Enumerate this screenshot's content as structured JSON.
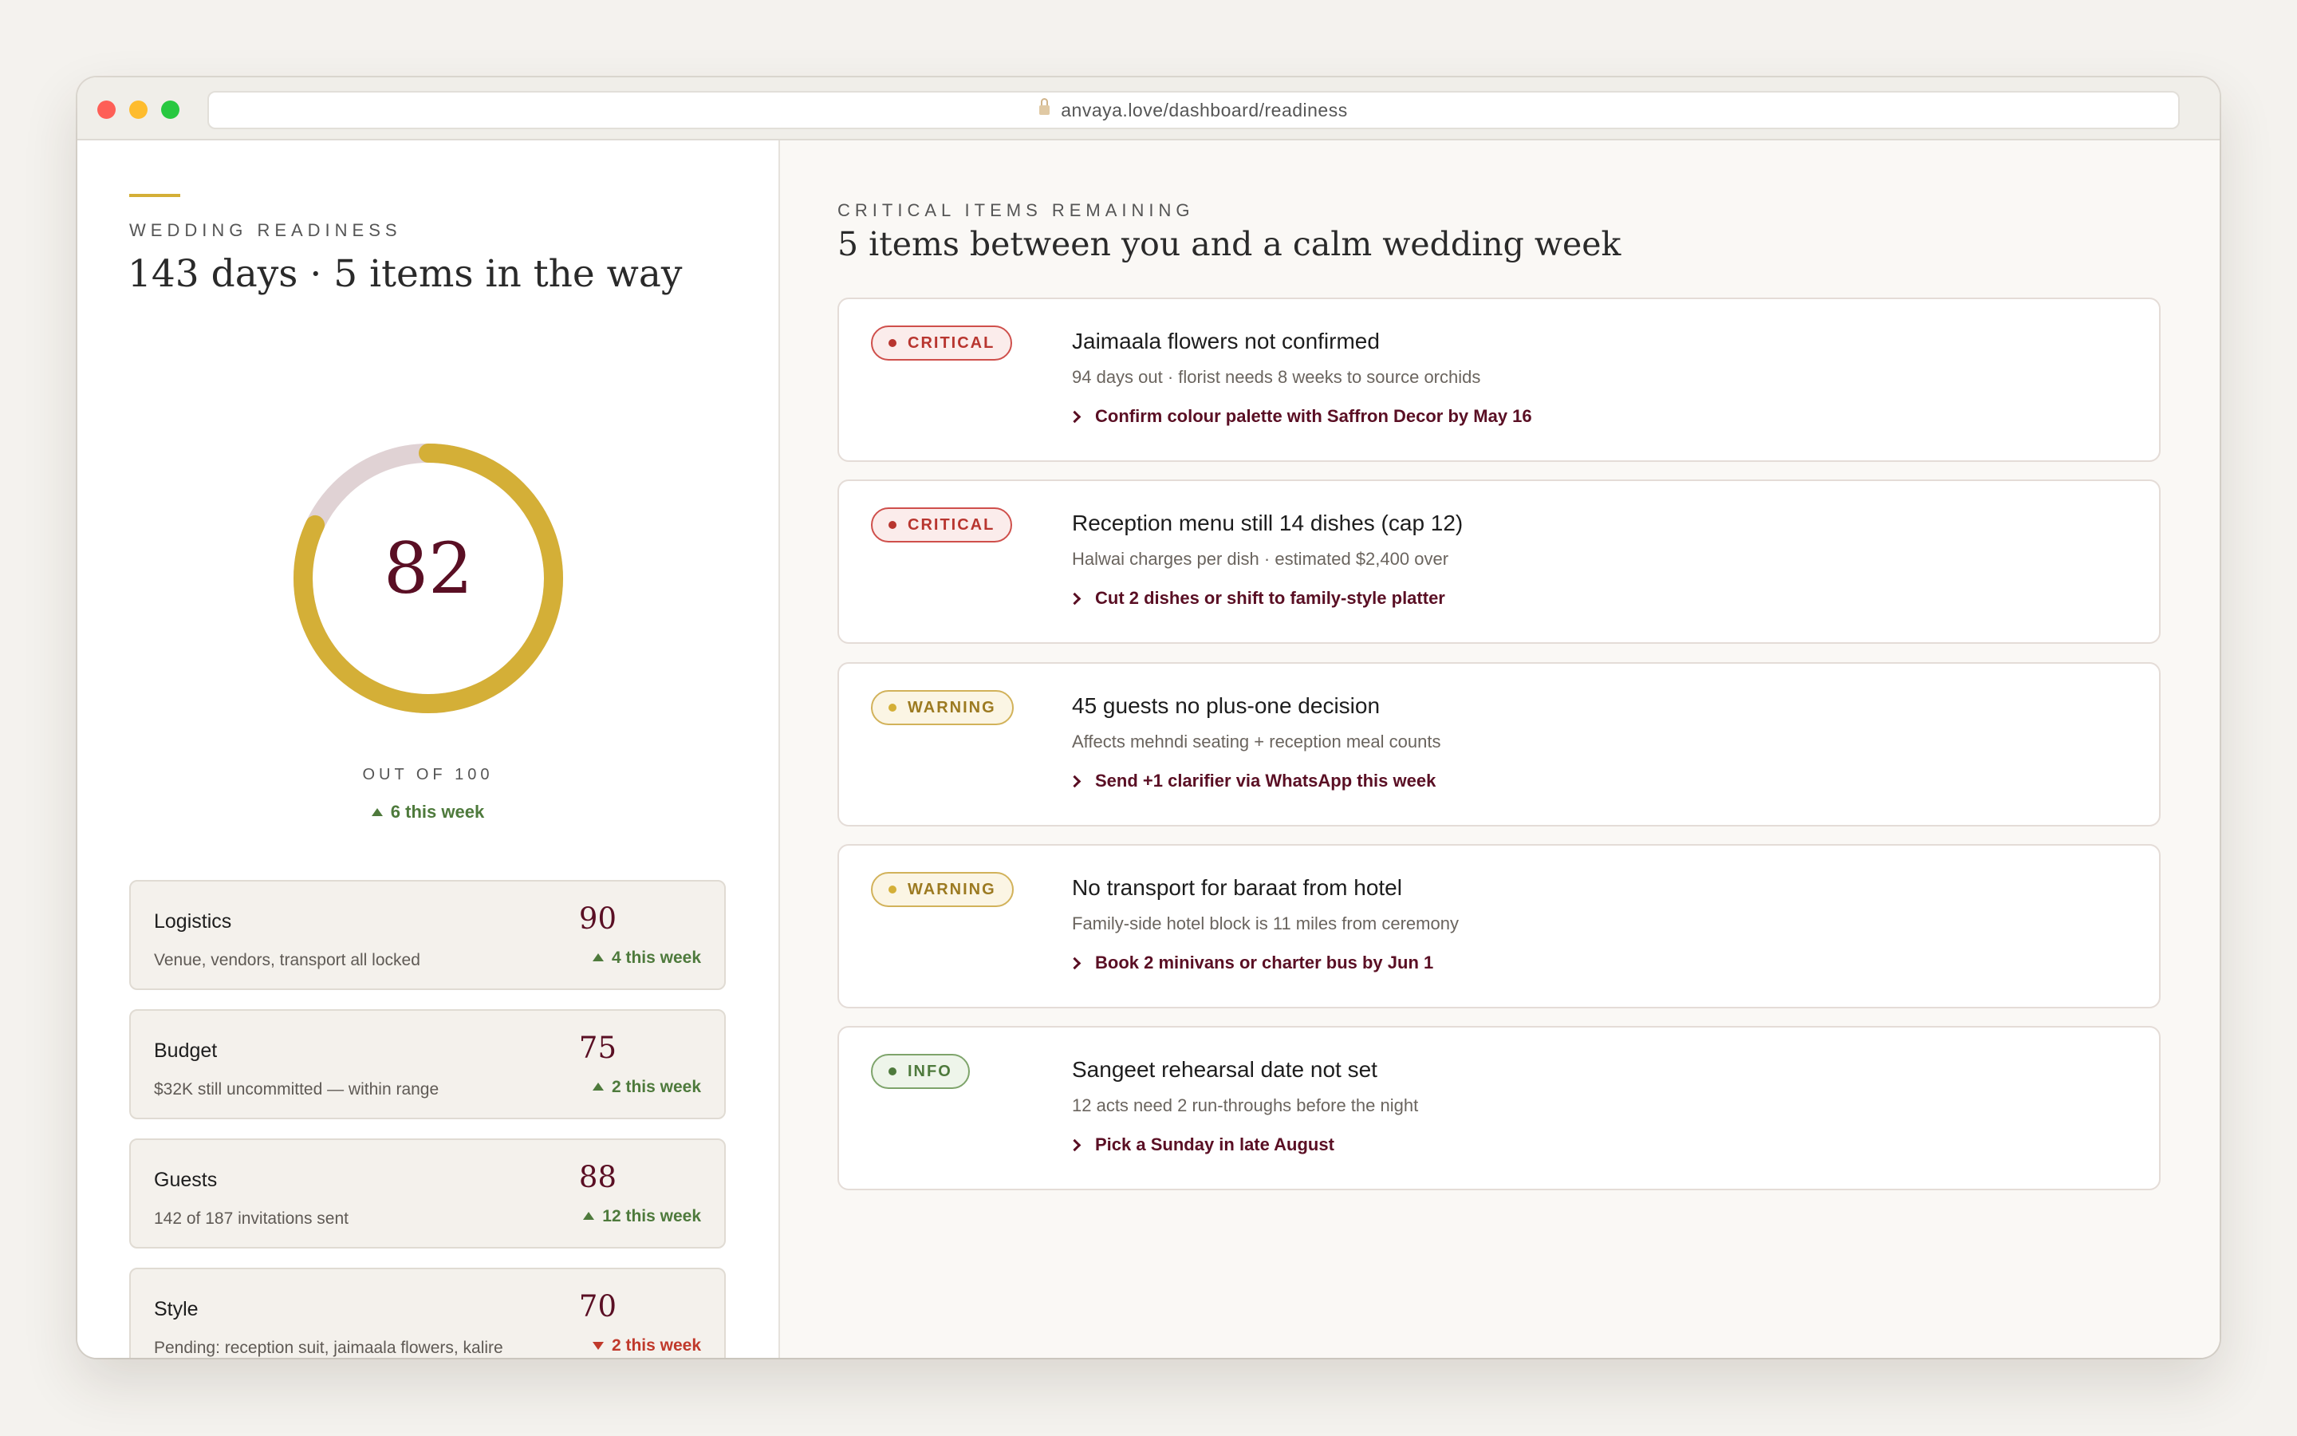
{
  "browser": {
    "url": "anvaya.love/dashboard/readiness"
  },
  "readiness": {
    "eyebrow": "WEDDING READINESS",
    "title": "143 days · 5 items in the way",
    "score": "82",
    "score_value": 82,
    "score_max": 100,
    "caption": "OUT OF 100",
    "delta": "6 this week",
    "colors": {
      "track": "#e0d2d4",
      "fill": "#d4af37",
      "score": "#5a0f24"
    }
  },
  "metrics": [
    {
      "name": "Logistics",
      "desc": "Venue, vendors, transport all locked",
      "score": "90",
      "delta": "4 this week",
      "trend": "up"
    },
    {
      "name": "Budget",
      "desc": "$32K still uncommitted — within range",
      "score": "75",
      "delta": "2 this week",
      "trend": "up"
    },
    {
      "name": "Guests",
      "desc": "142 of 187 invitations sent",
      "score": "88",
      "delta": "12 this week",
      "trend": "up"
    },
    {
      "name": "Style",
      "desc": "Pending: reception suit, jaimaala flowers, kalire",
      "score": "70",
      "delta": "2 this week",
      "trend": "down"
    }
  ],
  "critical": {
    "eyebrow": "CRITICAL ITEMS REMAINING",
    "title": "5 items between you and a calm wedding week",
    "items": [
      {
        "severity": "CRITICAL",
        "title": "Jaimaala flowers not confirmed",
        "desc": "94 days out · florist needs 8 weeks to source orchids",
        "action": "Confirm colour palette with Saffron Decor by May 16"
      },
      {
        "severity": "CRITICAL",
        "title": "Reception menu still 14 dishes (cap 12)",
        "desc": "Halwai charges per dish · estimated $2,400 over",
        "action": "Cut 2 dishes or shift to family-style platter"
      },
      {
        "severity": "WARNING",
        "title": "45 guests no plus-one decision",
        "desc": "Affects mehndi seating + reception meal counts",
        "action": "Send +1 clarifier via WhatsApp this week"
      },
      {
        "severity": "WARNING",
        "title": "No transport for baraat from hotel",
        "desc": "Family-side hotel block is 11 miles from ceremony",
        "action": "Book 2 minivans or charter bus by Jun 1"
      },
      {
        "severity": "INFO",
        "title": "Sangeet rehearsal date not set",
        "desc": "12 acts need 2 run-throughs before the night",
        "action": "Pick a Sunday in late August"
      }
    ]
  }
}
